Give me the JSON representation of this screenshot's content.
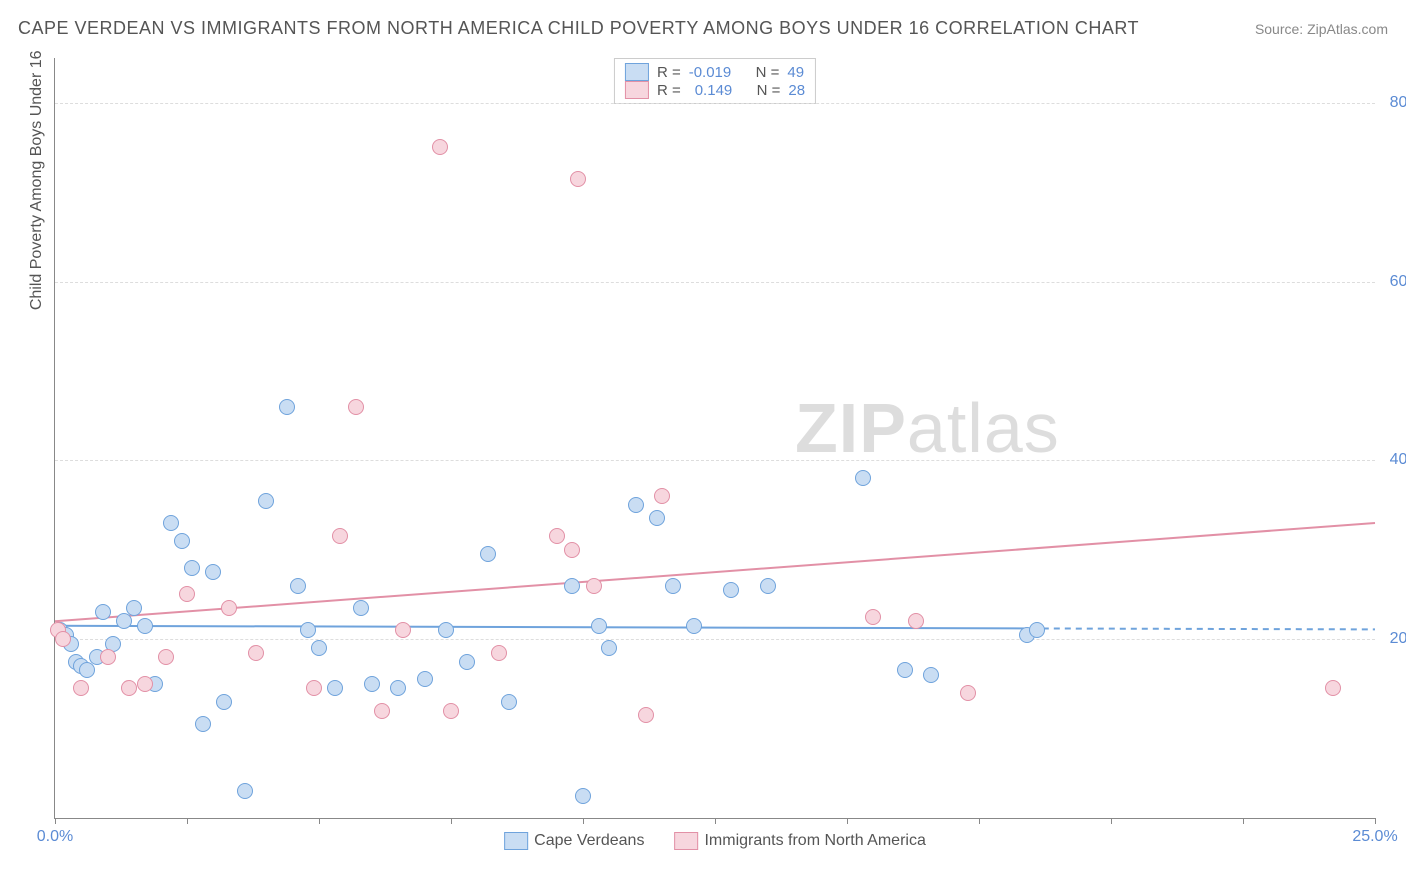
{
  "title": "CAPE VERDEAN VS IMMIGRANTS FROM NORTH AMERICA CHILD POVERTY AMONG BOYS UNDER 16 CORRELATION CHART",
  "source": "Source: ZipAtlas.com",
  "watermark_zip": "ZIP",
  "watermark_atlas": "atlas",
  "y_axis_title": "Child Poverty Among Boys Under 16",
  "chart": {
    "type": "scatter",
    "xlim": [
      0,
      25
    ],
    "ylim": [
      0,
      85
    ],
    "x_ticks": [
      0,
      2.5,
      5,
      7.5,
      10,
      12.5,
      15,
      17.5,
      20,
      22.5,
      25
    ],
    "x_tick_labels": {
      "0": "0.0%",
      "25": "25.0%"
    },
    "y_gridlines": [
      20,
      40,
      60,
      80
    ],
    "y_tick_labels": {
      "20": "20.0%",
      "40": "40.0%",
      "60": "60.0%",
      "80": "80.0%"
    },
    "background_color": "#ffffff",
    "grid_color": "#dddddd",
    "axis_color": "#888888",
    "label_color": "#5b8bd4",
    "marker_radius": 8,
    "marker_border_width": 1.5,
    "series": [
      {
        "name": "Cape Verdeans",
        "fill": "#c9ddf3",
        "stroke": "#6fa3dc",
        "R": "-0.019",
        "N": "49",
        "trend": {
          "x1": 0,
          "y1": 21.5,
          "x2": 18.5,
          "y2": 21.2,
          "dash_to_x": 25
        },
        "points": [
          [
            0.1,
            21
          ],
          [
            0.2,
            20.5
          ],
          [
            0.3,
            19.5
          ],
          [
            0.4,
            17.5
          ],
          [
            0.5,
            17
          ],
          [
            0.6,
            16.5
          ],
          [
            0.8,
            18
          ],
          [
            0.9,
            23
          ],
          [
            1.1,
            19.5
          ],
          [
            1.3,
            22
          ],
          [
            1.5,
            23.5
          ],
          [
            1.7,
            21.5
          ],
          [
            1.9,
            15
          ],
          [
            2.2,
            33
          ],
          [
            2.4,
            31
          ],
          [
            2.6,
            28
          ],
          [
            2.8,
            10.5
          ],
          [
            3.0,
            27.5
          ],
          [
            3.2,
            13
          ],
          [
            3.6,
            3
          ],
          [
            4.0,
            35.5
          ],
          [
            4.4,
            46
          ],
          [
            4.6,
            26
          ],
          [
            4.8,
            21
          ],
          [
            5.0,
            19
          ],
          [
            5.3,
            14.5
          ],
          [
            5.8,
            23.5
          ],
          [
            6.0,
            15
          ],
          [
            6.5,
            14.5
          ],
          [
            7.0,
            15.5
          ],
          [
            7.4,
            21
          ],
          [
            7.8,
            17.5
          ],
          [
            8.2,
            29.5
          ],
          [
            8.6,
            13
          ],
          [
            9.8,
            26
          ],
          [
            10.0,
            2.5
          ],
          [
            10.3,
            21.5
          ],
          [
            10.5,
            19
          ],
          [
            11.0,
            35
          ],
          [
            11.4,
            33.5
          ],
          [
            11.7,
            26
          ],
          [
            12.1,
            21.5
          ],
          [
            12.8,
            25.5
          ],
          [
            13.5,
            26
          ],
          [
            15.3,
            38
          ],
          [
            16.1,
            16.5
          ],
          [
            16.6,
            16
          ],
          [
            18.4,
            20.5
          ],
          [
            18.6,
            21
          ]
        ]
      },
      {
        "name": "Immigrants from North America",
        "fill": "#f7d6de",
        "stroke": "#e290a6",
        "R": "0.149",
        "N": "28",
        "trend": {
          "x1": 0,
          "y1": 22,
          "x2": 25,
          "y2": 33
        },
        "points": [
          [
            0.05,
            21
          ],
          [
            0.15,
            20
          ],
          [
            0.5,
            14.5
          ],
          [
            1.0,
            18
          ],
          [
            1.4,
            14.5
          ],
          [
            1.7,
            15
          ],
          [
            2.1,
            18
          ],
          [
            2.5,
            25
          ],
          [
            3.3,
            23.5
          ],
          [
            3.8,
            18.5
          ],
          [
            4.9,
            14.5
          ],
          [
            5.4,
            31.5
          ],
          [
            5.7,
            46
          ],
          [
            6.2,
            12
          ],
          [
            6.6,
            21
          ],
          [
            7.3,
            75
          ],
          [
            7.5,
            12
          ],
          [
            8.4,
            18.5
          ],
          [
            9.5,
            31.5
          ],
          [
            9.8,
            30
          ],
          [
            9.9,
            71.5
          ],
          [
            10.2,
            26
          ],
          [
            11.2,
            11.5
          ],
          [
            11.5,
            36
          ],
          [
            15.5,
            22.5
          ],
          [
            16.3,
            22
          ],
          [
            17.3,
            14
          ],
          [
            24.2,
            14.5
          ]
        ]
      }
    ]
  },
  "legend_top": {
    "r_label": "R =",
    "n_label": "N ="
  }
}
